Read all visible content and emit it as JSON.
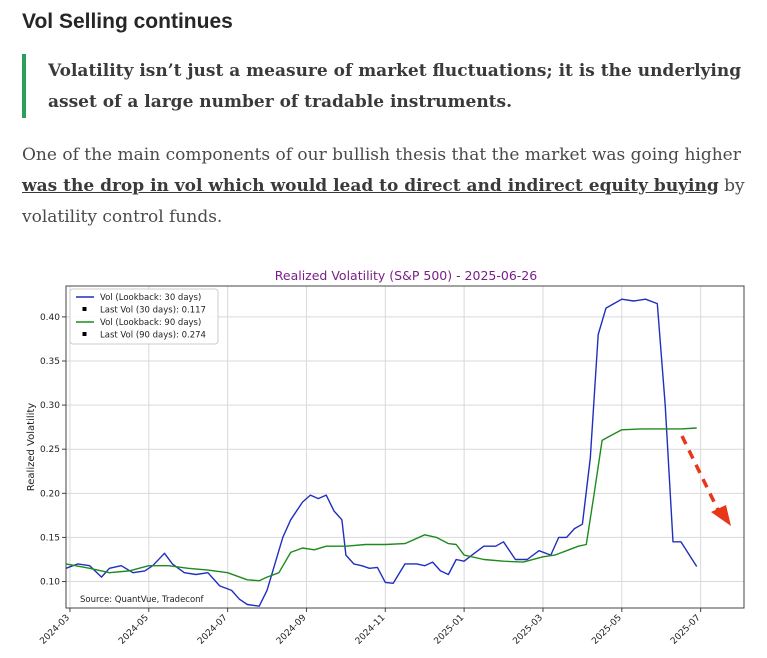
{
  "article": {
    "heading": "Vol Selling continues",
    "quote": "Volatility isn’t just a measure of market fluctuations; it is the underlying asset of a large number of tradable instruments.",
    "paragraph_before": "One of the main components of our bullish thesis that the market was going higher ",
    "paragraph_link": "was the drop in vol which would lead to direct and indirect equity buying",
    "paragraph_after": " by volatility control funds."
  },
  "colors": {
    "vol30": "#1f2fbf",
    "vol90": "#1e8a1e",
    "arrow": "#e8361a",
    "accent_bar": "#2e9e5b"
  },
  "chart_data": {
    "type": "line",
    "title": "Realized Volatility (S&P 500) - 2025-06-26",
    "xlabel": "",
    "ylabel": "Realized Volatility",
    "ylim": [
      0.07,
      0.435
    ],
    "yticks": [
      "0.10",
      "0.15",
      "0.20",
      "0.25",
      "0.30",
      "0.35",
      "0.40"
    ],
    "ytick_values": [
      0.1,
      0.15,
      0.2,
      0.25,
      0.3,
      0.35,
      0.4
    ],
    "xlim": [
      -0.1,
      17.1
    ],
    "xticks": [
      "2024-03",
      "2024-05",
      "2024-07",
      "2024-09",
      "2024-11",
      "2025-01",
      "2025-03",
      "2025-05",
      "2025-07"
    ],
    "xtick_values": [
      0,
      2,
      4,
      6,
      8,
      10,
      12,
      14,
      16
    ],
    "grid": true,
    "legend_position": "top-left",
    "legend": [
      {
        "label": "Vol (Lookback: 30 days)",
        "marker": "line",
        "series": 0
      },
      {
        "label": "Last Vol (30 days): 0.117",
        "marker": "square"
      },
      {
        "label": "Vol (Lookback: 90 days)",
        "marker": "line",
        "series": 1
      },
      {
        "label": "Last Vol (90 days): 0.274",
        "marker": "square"
      }
    ],
    "annotation": "Source: QuantVue, Tradeconf",
    "series": [
      {
        "name": "Vol (Lookback: 30 days)",
        "x": [
          -0.1,
          0.2,
          0.5,
          0.8,
          1.0,
          1.3,
          1.6,
          1.9,
          2.1,
          2.4,
          2.6,
          2.9,
          3.2,
          3.5,
          3.8,
          4.1,
          4.3,
          4.5,
          4.8,
          5.0,
          5.2,
          5.4,
          5.6,
          5.9,
          6.1,
          6.3,
          6.5,
          6.7,
          6.9,
          7.0,
          7.2,
          7.4,
          7.6,
          7.8,
          8.0,
          8.2,
          8.5,
          8.8,
          9.0,
          9.2,
          9.4,
          9.6,
          9.8,
          10.0,
          10.2,
          10.5,
          10.8,
          11.0,
          11.3,
          11.6,
          11.9,
          12.2,
          12.4,
          12.6,
          12.8,
          13.0,
          13.2,
          13.4,
          13.6,
          13.8,
          14.0,
          14.3,
          14.6,
          14.9,
          15.1,
          15.3,
          15.5,
          15.9
        ],
        "values": [
          0.115,
          0.12,
          0.118,
          0.105,
          0.115,
          0.118,
          0.11,
          0.112,
          0.118,
          0.132,
          0.12,
          0.11,
          0.108,
          0.11,
          0.095,
          0.09,
          0.08,
          0.074,
          0.072,
          0.09,
          0.12,
          0.15,
          0.17,
          0.19,
          0.198,
          0.194,
          0.198,
          0.18,
          0.17,
          0.13,
          0.12,
          0.118,
          0.115,
          0.116,
          0.099,
          0.098,
          0.12,
          0.12,
          0.118,
          0.122,
          0.112,
          0.108,
          0.125,
          0.123,
          0.13,
          0.14,
          0.14,
          0.145,
          0.125,
          0.125,
          0.135,
          0.13,
          0.15,
          0.15,
          0.16,
          0.165,
          0.24,
          0.38,
          0.41,
          0.415,
          0.42,
          0.418,
          0.42,
          0.415,
          0.3,
          0.145,
          0.145,
          0.117
        ]
      },
      {
        "name": "Vol (Lookback: 90 days)",
        "x": [
          -0.1,
          0.5,
          1.0,
          1.5,
          2.0,
          2.5,
          3.0,
          3.5,
          4.0,
          4.5,
          4.8,
          5.0,
          5.3,
          5.6,
          5.9,
          6.2,
          6.5,
          7.0,
          7.5,
          8.0,
          8.5,
          9.0,
          9.3,
          9.6,
          9.8,
          10.0,
          10.5,
          11.0,
          11.5,
          12.0,
          12.3,
          12.6,
          12.9,
          13.1,
          13.3,
          13.5,
          13.7,
          14.0,
          14.5,
          15.0,
          15.5,
          15.9
        ],
        "values": [
          0.12,
          0.115,
          0.11,
          0.112,
          0.118,
          0.118,
          0.115,
          0.113,
          0.11,
          0.102,
          0.101,
          0.105,
          0.11,
          0.133,
          0.138,
          0.136,
          0.14,
          0.14,
          0.142,
          0.142,
          0.143,
          0.153,
          0.15,
          0.143,
          0.142,
          0.13,
          0.125,
          0.123,
          0.122,
          0.128,
          0.13,
          0.135,
          0.14,
          0.142,
          0.2,
          0.26,
          0.265,
          0.272,
          0.273,
          0.273,
          0.273,
          0.274
        ]
      }
    ]
  }
}
